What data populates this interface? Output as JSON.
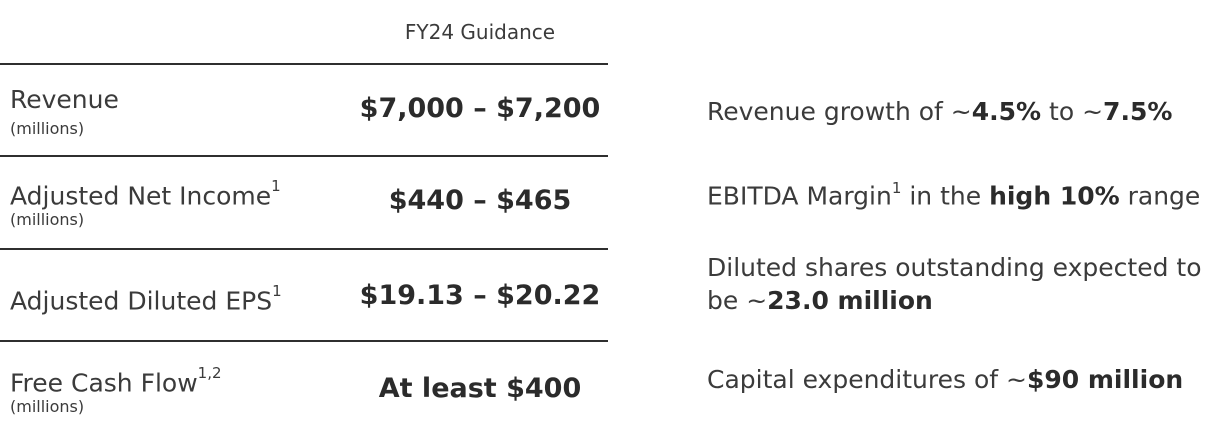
{
  "header": {
    "column": "FY24 Guidance"
  },
  "rows": [
    {
      "label": "Revenue",
      "sup": "",
      "unit": "(millions)",
      "value": "$7,000 – $7,200"
    },
    {
      "label": "Adjusted Net Income",
      "sup": "1",
      "unit": "(millions)",
      "value": "$440 – $465"
    },
    {
      "label": "Adjusted Diluted EPS",
      "sup": "1",
      "unit": "",
      "value": "$19.13 – $20.22"
    },
    {
      "label": "Free Cash Flow",
      "sup": "1,2",
      "unit": "(millions)",
      "value": "At least $400"
    }
  ],
  "notes": {
    "revenue_growth": {
      "prefix": "Revenue growth of ~",
      "low": "4.5%",
      "mid": " to ~",
      "high": "7.5%"
    },
    "ebitda": {
      "prefix": "EBITDA Margin",
      "sup": "1",
      "mid": " in the ",
      "bold": "high 10%",
      "suffix": " range"
    },
    "shares": {
      "line1": "Diluted shares outstanding expected to",
      "line2_prefix": "be ~",
      "bold": "23.0 million"
    },
    "capex": {
      "prefix": "Capital expenditures of ~",
      "bold": "$90 million"
    }
  }
}
